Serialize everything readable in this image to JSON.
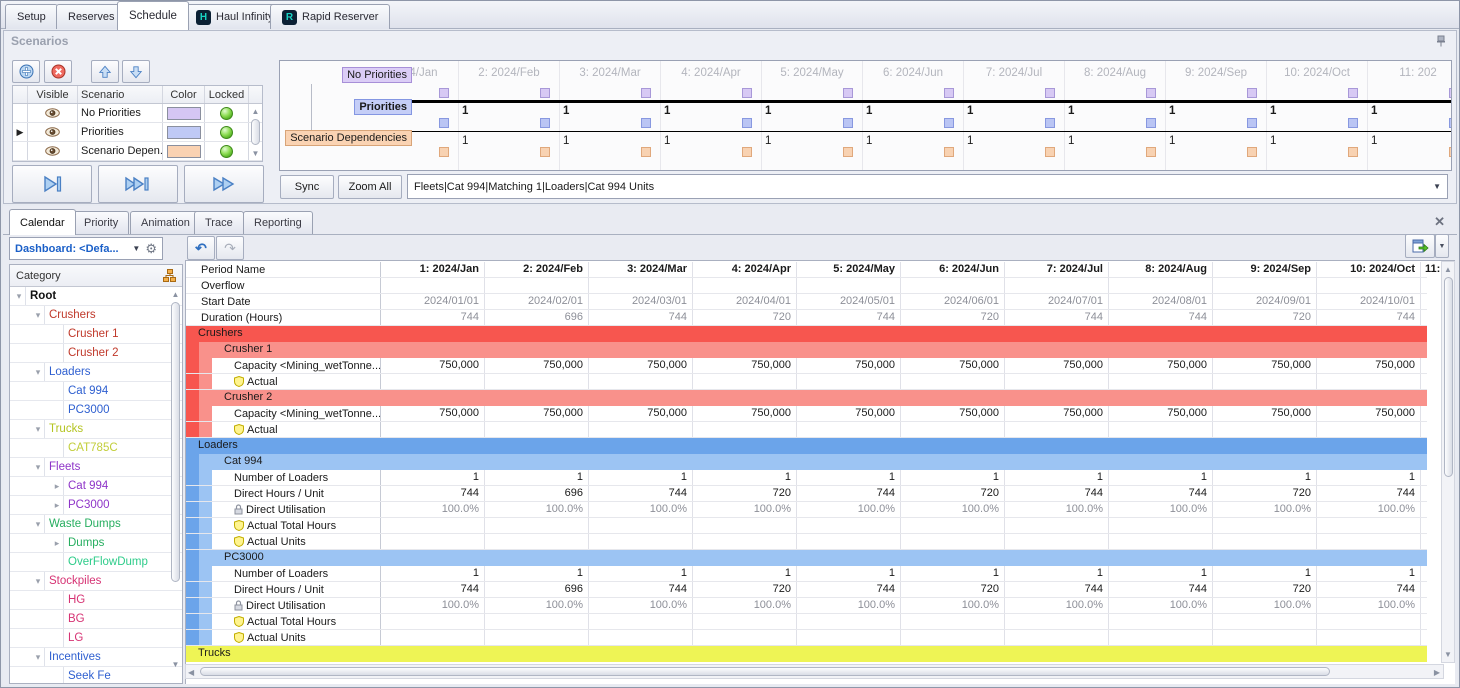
{
  "app_tabs": [
    {
      "label": "Setup"
    },
    {
      "label": "Reserves"
    },
    {
      "label": "Schedule",
      "active": true
    },
    {
      "label": "Haul Infinity",
      "icon": "H"
    },
    {
      "label": "Rapid Reserver",
      "icon": "R"
    }
  ],
  "scenarios": {
    "title": "Scenarios",
    "table": {
      "headers": {
        "visible": "Visible",
        "scenario": "Scenario",
        "color": "Color",
        "locked": "Locked"
      },
      "rows": [
        {
          "name": "No Priorities",
          "color": "#d5c6f3",
          "selected": false,
          "visible": true,
          "locked": true
        },
        {
          "name": "Priorities",
          "color": "#bfc9f5",
          "selected": true,
          "visible": true,
          "locked": true
        },
        {
          "name": "Scenario Depen...",
          "color": "#fad2b2",
          "selected": false,
          "visible": true,
          "locked": true
        }
      ]
    },
    "timeline": {
      "chips": [
        {
          "text": "No Priorities",
          "bg": "#dbcdf6",
          "border": "#a78fd8",
          "bold": false
        },
        {
          "text": "Priorities",
          "bg": "#c5cef7",
          "border": "#8496e2",
          "bold": true
        },
        {
          "text": "Scenario Dependencies",
          "bg": "#fad3b3",
          "border": "#d8a478",
          "bold": false
        }
      ],
      "periods": [
        "1: 2024/Jan",
        "2: 2024/Feb",
        "3: 2024/Mar",
        "4: 2024/Apr",
        "5: 2024/May",
        "6: 2024/Jun",
        "7: 2024/Jul",
        "8: 2024/Aug",
        "9: 2024/Sep",
        "10: 2024/Oct",
        "11: 202"
      ],
      "cell_value": "1",
      "squares": {
        "no_priorities": {
          "bg": "#d7c9f4",
          "border": "#a898d8"
        },
        "priorities": {
          "bg": "#bac5f4",
          "border": "#8898e0"
        },
        "dependencies": {
          "bg": "#f8d2b2",
          "border": "#e0a87c"
        }
      }
    },
    "sync_label": "Sync",
    "zoom_all_label": "Zoom All",
    "path_combo": "Fleets|Cat 994|Matching 1|Loaders|Cat 994 Units"
  },
  "bottom": {
    "tabs": [
      "Calendar",
      "Priority",
      "Animation",
      "Trace",
      "Reporting"
    ],
    "active_tab": "Calendar",
    "dashboard_combo": "Dashboard: <Defa...",
    "tree": {
      "header": "Category",
      "items": [
        {
          "label": "Root",
          "level": 0,
          "color": "#111111",
          "bold": true,
          "expander": "open"
        },
        {
          "label": "Crushers",
          "level": 1,
          "color": "#c0392b",
          "expander": "open"
        },
        {
          "label": "Crusher 1",
          "level": 2,
          "color": "#c0392b",
          "expander": "none"
        },
        {
          "label": "Crusher 2",
          "level": 2,
          "color": "#c0392b",
          "expander": "none"
        },
        {
          "label": "Loaders",
          "level": 1,
          "color": "#2e5fd0",
          "expander": "open"
        },
        {
          "label": "Cat 994",
          "level": 2,
          "color": "#2e5fd0",
          "expander": "none"
        },
        {
          "label": "PC3000",
          "level": 2,
          "color": "#2e5fd0",
          "expander": "none"
        },
        {
          "label": "Trucks",
          "level": 1,
          "color": "#b4c421",
          "expander": "open"
        },
        {
          "label": "CAT785C",
          "level": 2,
          "color": "#c2ce3a",
          "expander": "none"
        },
        {
          "label": "Fleets",
          "level": 1,
          "color": "#8e34c8",
          "expander": "open"
        },
        {
          "label": "Cat 994",
          "level": 2,
          "color": "#8e34c8",
          "expander": "closed"
        },
        {
          "label": "PC3000",
          "level": 2,
          "color": "#8e34c8",
          "expander": "closed"
        },
        {
          "label": "Waste Dumps",
          "level": 1,
          "color": "#27ae60",
          "expander": "open"
        },
        {
          "label": "Dumps",
          "level": 2,
          "color": "#27ae60",
          "expander": "closed"
        },
        {
          "label": "OverFlowDump",
          "level": 2,
          "color": "#2ecc8a",
          "expander": "none"
        },
        {
          "label": "Stockpiles",
          "level": 1,
          "color": "#d63374",
          "expander": "open"
        },
        {
          "label": "HG",
          "level": 2,
          "color": "#d63374",
          "expander": "none"
        },
        {
          "label": "BG",
          "level": 2,
          "color": "#d63374",
          "expander": "none"
        },
        {
          "label": "LG",
          "level": 2,
          "color": "#d63374",
          "expander": "none"
        },
        {
          "label": "Incentives",
          "level": 1,
          "color": "#2e5fd0",
          "expander": "open"
        },
        {
          "label": "Seek Fe",
          "level": 2,
          "color": "#2e5fd0",
          "expander": "none"
        }
      ]
    },
    "grid": {
      "sections": {
        "crushers": {
          "band1": "#f7564f",
          "band2": "#f9918b"
        },
        "loaders": {
          "band1": "#6ba4ea",
          "band2": "#9cc4f3"
        },
        "trucks": {
          "band1": "#eef455",
          "band2": ""
        }
      },
      "partial_col_header": "11:",
      "rows": [
        {
          "type": "meta",
          "label": "Period Name",
          "style": "bold",
          "values": [
            "1: 2024/Jan",
            "2: 2024/Feb",
            "3: 2024/Mar",
            "4: 2024/Apr",
            "5: 2024/May",
            "6: 2024/Jun",
            "7: 2024/Jul",
            "8: 2024/Aug",
            "9: 2024/Sep",
            "10: 2024/Oct"
          ]
        },
        {
          "type": "meta",
          "label": "Overflow",
          "values": [
            "",
            "",
            "",
            "",
            "",
            "",
            "",
            "",
            "",
            ""
          ]
        },
        {
          "type": "meta",
          "label": "Start Date",
          "style": "gray",
          "values": [
            "2024/01/01",
            "2024/02/01",
            "2024/03/01",
            "2024/04/01",
            "2024/05/01",
            "2024/06/01",
            "2024/07/01",
            "2024/08/01",
            "2024/09/01",
            "2024/10/01"
          ]
        },
        {
          "type": "meta",
          "label": "Duration (Hours)",
          "style": "gray",
          "values": [
            "744",
            "696",
            "744",
            "720",
            "744",
            "720",
            "744",
            "744",
            "720",
            "744"
          ]
        },
        {
          "type": "band1",
          "label": "Crushers",
          "section": "crushers"
        },
        {
          "type": "band2",
          "label": "Crusher 1",
          "section": "crushers"
        },
        {
          "type": "data",
          "label": "Capacity <Mining_wetTonne...",
          "section": "crushers",
          "values": [
            "750,000",
            "750,000",
            "750,000",
            "750,000",
            "750,000",
            "750,000",
            "750,000",
            "750,000",
            "750,000",
            "750,000"
          ]
        },
        {
          "type": "data",
          "label": "Actual",
          "icon": "shield",
          "section": "crushers",
          "values": [
            "",
            "",
            "",
            "",
            "",
            "",
            "",
            "",
            "",
            ""
          ]
        },
        {
          "type": "band2",
          "label": "Crusher 2",
          "section": "crushers"
        },
        {
          "type": "data",
          "label": "Capacity <Mining_wetTonne...",
          "section": "crushers",
          "values": [
            "750,000",
            "750,000",
            "750,000",
            "750,000",
            "750,000",
            "750,000",
            "750,000",
            "750,000",
            "750,000",
            "750,000"
          ]
        },
        {
          "type": "data",
          "label": "Actual",
          "icon": "shield",
          "section": "crushers",
          "values": [
            "",
            "",
            "",
            "",
            "",
            "",
            "",
            "",
            "",
            ""
          ]
        },
        {
          "type": "band1",
          "label": "Loaders",
          "section": "loaders"
        },
        {
          "type": "band2",
          "label": "Cat 994",
          "section": "loaders"
        },
        {
          "type": "data",
          "label": "Number of Loaders",
          "section": "loaders",
          "values": [
            "1",
            "1",
            "1",
            "1",
            "1",
            "1",
            "1",
            "1",
            "1",
            "1"
          ]
        },
        {
          "type": "data",
          "label": "Direct Hours / Unit",
          "section": "loaders",
          "values": [
            "744",
            "696",
            "744",
            "720",
            "744",
            "720",
            "744",
            "744",
            "720",
            "744"
          ]
        },
        {
          "type": "data",
          "label": "Direct Utilisation",
          "icon": "lock",
          "style": "gray",
          "section": "loaders",
          "values": [
            "100.0%",
            "100.0%",
            "100.0%",
            "100.0%",
            "100.0%",
            "100.0%",
            "100.0%",
            "100.0%",
            "100.0%",
            "100.0%"
          ]
        },
        {
          "type": "data",
          "label": "Actual Total Hours",
          "icon": "shield",
          "section": "loaders",
          "values": [
            "",
            "",
            "",
            "",
            "",
            "",
            "",
            "",
            "",
            ""
          ]
        },
        {
          "type": "data",
          "label": "Actual Units",
          "icon": "shield",
          "section": "loaders",
          "values": [
            "",
            "",
            "",
            "",
            "",
            "",
            "",
            "",
            "",
            ""
          ]
        },
        {
          "type": "band2",
          "label": "PC3000",
          "section": "loaders"
        },
        {
          "type": "data",
          "label": "Number of Loaders",
          "section": "loaders",
          "values": [
            "1",
            "1",
            "1",
            "1",
            "1",
            "1",
            "1",
            "1",
            "1",
            "1"
          ]
        },
        {
          "type": "data",
          "label": "Direct Hours / Unit",
          "section": "loaders",
          "values": [
            "744",
            "696",
            "744",
            "720",
            "744",
            "720",
            "744",
            "744",
            "720",
            "744"
          ]
        },
        {
          "type": "data",
          "label": "Direct Utilisation",
          "icon": "lock",
          "style": "gray",
          "section": "loaders",
          "values": [
            "100.0%",
            "100.0%",
            "100.0%",
            "100.0%",
            "100.0%",
            "100.0%",
            "100.0%",
            "100.0%",
            "100.0%",
            "100.0%"
          ]
        },
        {
          "type": "data",
          "label": "Actual Total Hours",
          "icon": "shield",
          "section": "loaders",
          "values": [
            "",
            "",
            "",
            "",
            "",
            "",
            "",
            "",
            "",
            ""
          ]
        },
        {
          "type": "data",
          "label": "Actual Units",
          "icon": "shield",
          "section": "loaders",
          "values": [
            "",
            "",
            "",
            "",
            "",
            "",
            "",
            "",
            "",
            ""
          ]
        },
        {
          "type": "band1",
          "label": "Trucks",
          "section": "trucks"
        }
      ]
    }
  }
}
